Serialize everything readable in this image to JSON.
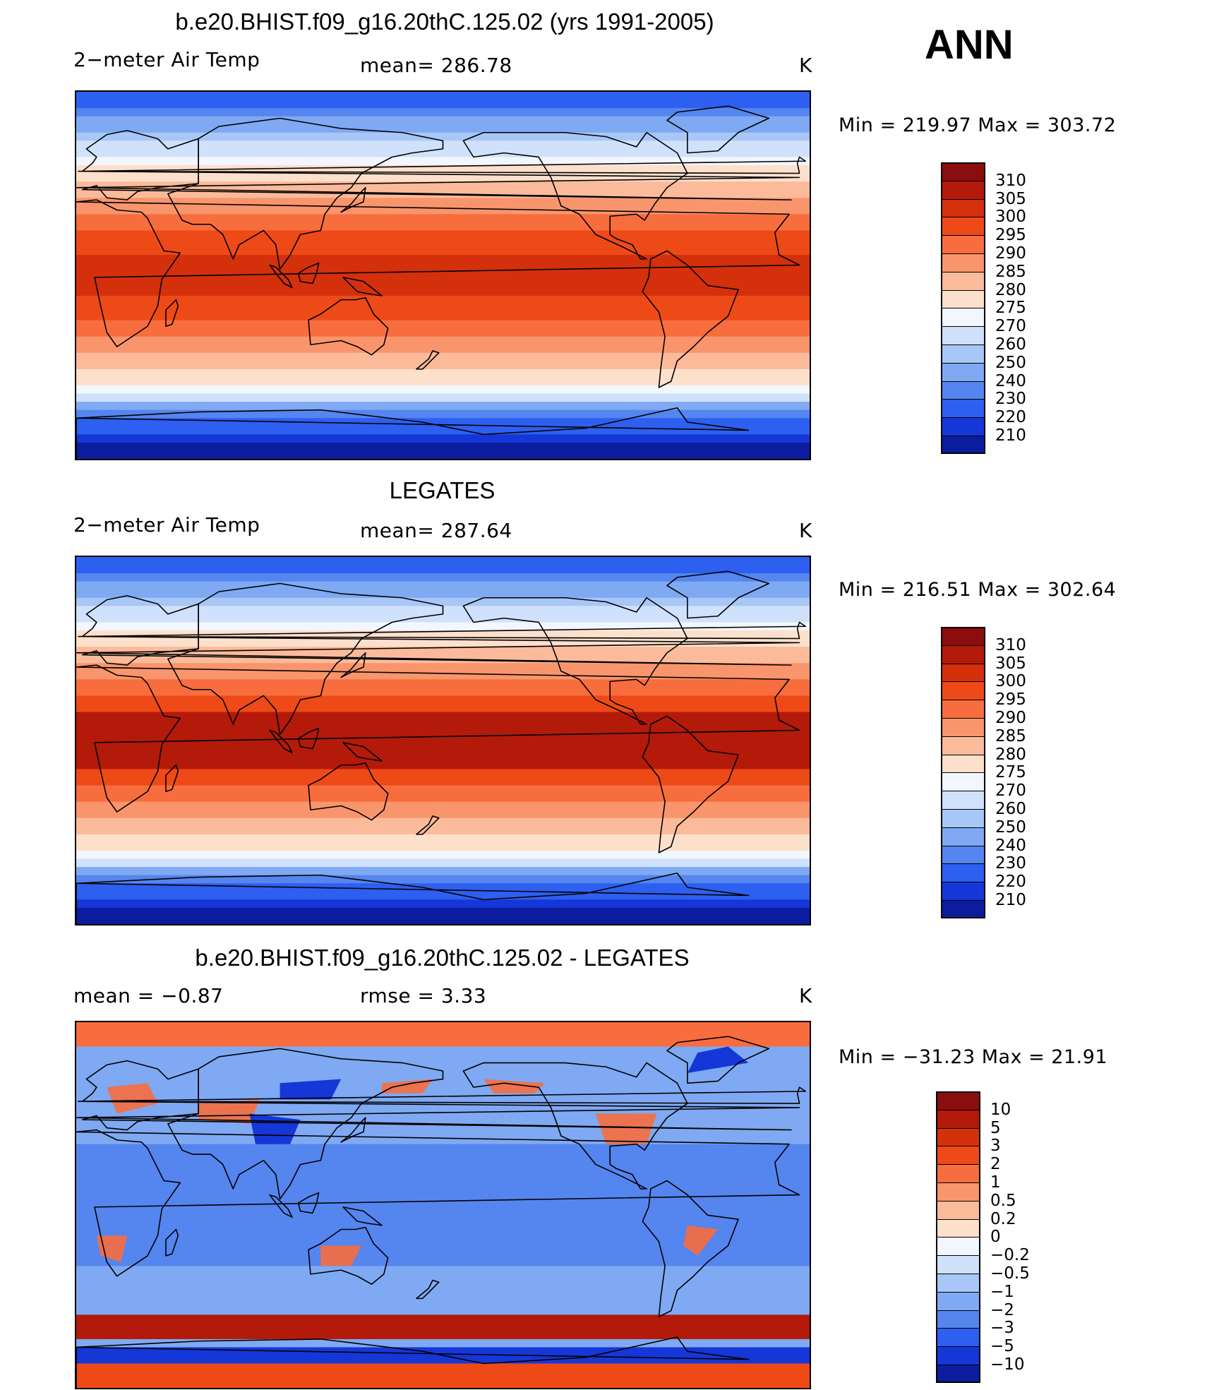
{
  "season": "ANN",
  "panels": [
    {
      "title": "b.e20.BHIST.f09_g16.20thC.125.02 (yrs 1991-2005)",
      "left_label": "2−meter Air Temp",
      "center_label": "mean=  286.78",
      "units": "K",
      "min_max": "Min  =  219.97  Max  =  303.72",
      "field": "model"
    },
    {
      "title": "LEGATES",
      "left_label": "2−meter Air Temp",
      "center_label": "mean=  287.64",
      "units": "K",
      "min_max": "Min  =  216.51  Max  =  302.64",
      "field": "obs"
    },
    {
      "title": "b.e20.BHIST.f09_g16.20thC.125.02 - LEGATES",
      "left_label": "mean  =    −0.87",
      "center_label": "rmse  =      3.33",
      "units": "K",
      "min_max": "Min  =  −31.23  Max  =    21.91",
      "field": "diff"
    }
  ],
  "colorbars": {
    "temperature": {
      "labels": [
        "310",
        "305",
        "300",
        "295",
        "290",
        "285",
        "280",
        "275",
        "270",
        "260",
        "250",
        "240",
        "230",
        "220",
        "210"
      ],
      "colors": [
        "#8c0d0d",
        "#b31a0a",
        "#d4300c",
        "#ee4a17",
        "#f76d3e",
        "#f9956c",
        "#fbbb9b",
        "#fde0cc",
        "#f2f6ff",
        "#cfe1fb",
        "#a8c7f7",
        "#7fa9f2",
        "#5585ee",
        "#2d5ff0",
        "#1537d8",
        "#0b1d9e"
      ]
    },
    "difference": {
      "labels": [
        "10",
        "5",
        "3",
        "2",
        "1",
        "0.5",
        "0.2",
        "0",
        "−0.2",
        "−0.5",
        "−1",
        "−2",
        "−3",
        "−5",
        "−10"
      ],
      "colors": [
        "#8c0d0d",
        "#b31a0a",
        "#d4300c",
        "#ee4a17",
        "#f76d3e",
        "#f9956c",
        "#fbbb9b",
        "#fde0cc",
        "#f2f6ff",
        "#cfe1fb",
        "#a8c7f7",
        "#7fa9f2",
        "#5585ee",
        "#2d5ff0",
        "#1537d8",
        "#0b1d9e"
      ]
    }
  }
}
